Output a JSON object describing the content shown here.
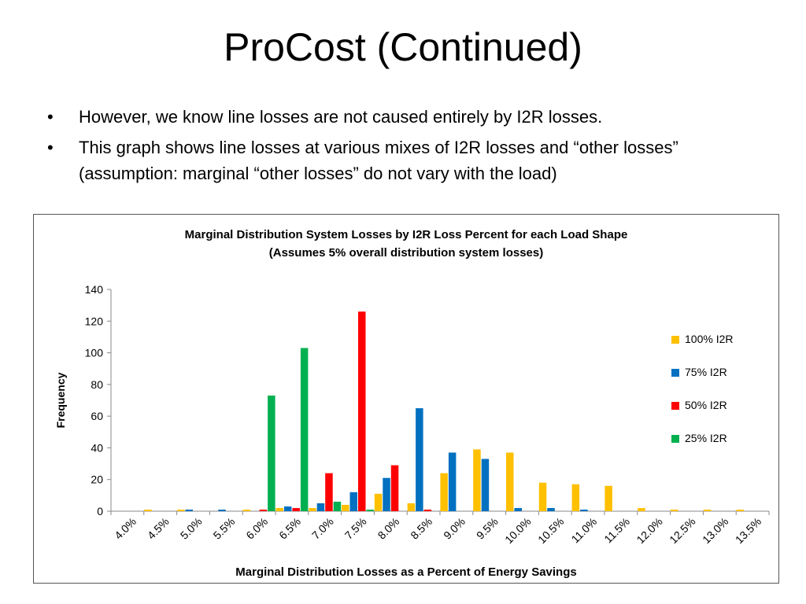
{
  "slide": {
    "title": "ProCost (Continued)",
    "bullets": [
      "However, we know line losses are not caused entirely by I2R losses.",
      "This graph shows line losses at various mixes of I2R losses and “other losses” (assumption: marginal “other losses” do not vary with the load)"
    ]
  },
  "chart_data": {
    "type": "bar",
    "title": "Marginal Distribution System Losses by I2R Loss Percent for each Load Shape",
    "subtitle": "(Assumes 5% overall distribution system losses)",
    "xlabel": "Marginal Distribution Losses as a Percent of Energy Savings",
    "ylabel": "Frequency",
    "ylim": [
      0,
      140
    ],
    "yticks": [
      0,
      20,
      40,
      60,
      80,
      100,
      120,
      140
    ],
    "categories": [
      "4.0%",
      "4.5%",
      "5.0%",
      "5.5%",
      "6.0%",
      "6.5%",
      "7.0%",
      "7.5%",
      "8.0%",
      "8.5%",
      "9.0%",
      "9.5%",
      "10.0%",
      "10.5%",
      "11.0%",
      "11.5%",
      "12.0%",
      "12.5%",
      "13.0%",
      "13.5%"
    ],
    "grid": false,
    "legend_position": "right",
    "series": [
      {
        "name": "100% I2R",
        "color": "#FFC000",
        "values": [
          0,
          1,
          1,
          0,
          1,
          2,
          2,
          4,
          11,
          5,
          24,
          39,
          37,
          18,
          17,
          16,
          2,
          1,
          1,
          1
        ]
      },
      {
        "name": "75% I2R",
        "color": "#0070C0",
        "values": [
          0,
          0,
          1,
          1,
          0,
          3,
          5,
          12,
          21,
          65,
          37,
          33,
          2,
          2,
          1,
          0,
          0,
          0,
          0,
          0
        ]
      },
      {
        "name": "50% I2R",
        "color": "#FF0000",
        "values": [
          0,
          0,
          0,
          0,
          1,
          2,
          24,
          126,
          29,
          1,
          0,
          0,
          0,
          0,
          0,
          0,
          0,
          0,
          0,
          0
        ]
      },
      {
        "name": "25% I2R",
        "color": "#00B050",
        "values": [
          0,
          0,
          0,
          0,
          73,
          103,
          6,
          1,
          0,
          0,
          0,
          0,
          0,
          0,
          0,
          0,
          0,
          0,
          0,
          0
        ]
      }
    ]
  }
}
